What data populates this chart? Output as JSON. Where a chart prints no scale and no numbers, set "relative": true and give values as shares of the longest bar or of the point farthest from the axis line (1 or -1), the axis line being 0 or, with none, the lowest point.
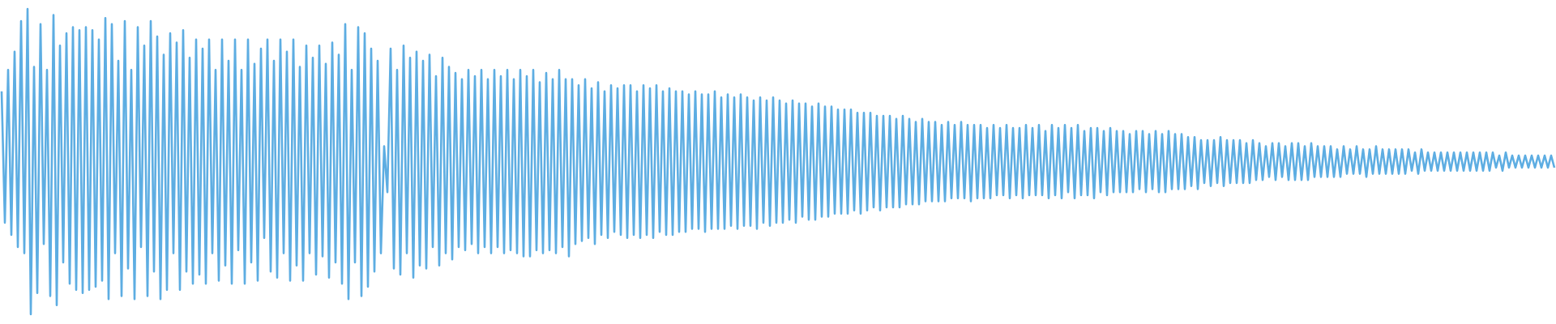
{
  "chart_data": {
    "type": "line",
    "relative": true,
    "color": "#5dade2",
    "categories": [
      null,
      null,
      null,
      null,
      null,
      null,
      null,
      null,
      null,
      null,
      null,
      null,
      null,
      null,
      null,
      null,
      null,
      null,
      null,
      null,
      null,
      null,
      null,
      null,
      null,
      null,
      null,
      null,
      null,
      null,
      null,
      null,
      null,
      null,
      null,
      null,
      null,
      null,
      null,
      null,
      null,
      null,
      null,
      null,
      null,
      null,
      null,
      null,
      null,
      null,
      null,
      null,
      null,
      null,
      null,
      null,
      null,
      null,
      null,
      null,
      null,
      null,
      null,
      null,
      null,
      null,
      null,
      null,
      null,
      null,
      null,
      null,
      null,
      null,
      null,
      null,
      null,
      null,
      null,
      null,
      null,
      null,
      null,
      null,
      null,
      null,
      null,
      null,
      null,
      null,
      null,
      null,
      null,
      null,
      null,
      null,
      null,
      null,
      null,
      null,
      null,
      null,
      null,
      null,
      null,
      null,
      null,
      null,
      null,
      null,
      null,
      null,
      null,
      null,
      null,
      null,
      null,
      null,
      null,
      null,
      null,
      null,
      null,
      null,
      null,
      null,
      null,
      null,
      null,
      null,
      null,
      null,
      null,
      null,
      null,
      null,
      null,
      null,
      null,
      null,
      null,
      null,
      null,
      null,
      null,
      null,
      null,
      null,
      null,
      null,
      null,
      null,
      null,
      null,
      null,
      null,
      null,
      null,
      null,
      null,
      null,
      null,
      null,
      null,
      null,
      null,
      null,
      null,
      null,
      null,
      null,
      null,
      null,
      null,
      null,
      null,
      null,
      null,
      null,
      null,
      null,
      null,
      null,
      null,
      null,
      null,
      null,
      null,
      null,
      null,
      null,
      null,
      null,
      null,
      null,
      null,
      null,
      null,
      null,
      null,
      null,
      null,
      null,
      null,
      null,
      null,
      null,
      null,
      null,
      null,
      null,
      null,
      null,
      null,
      null,
      null,
      null,
      null,
      null,
      null,
      null,
      null,
      null,
      null,
      null,
      null,
      null,
      null,
      null,
      null,
      null,
      null,
      null,
      null,
      null,
      null,
      null,
      null,
      null,
      null,
      null,
      null,
      null,
      null,
      null,
      null,
      null,
      null,
      null,
      null,
      null,
      null,
      null,
      null,
      null,
      null,
      null,
      null,
      null,
      null,
      null,
      null,
      null,
      null,
      null,
      null,
      null,
      null,
      null,
      null,
      null,
      null,
      null,
      null,
      null,
      null,
      null,
      null,
      null,
      null,
      null,
      null,
      null,
      null,
      null,
      null,
      null,
      null,
      null,
      null,
      null,
      null,
      null,
      null,
      null,
      null,
      null,
      null,
      null,
      null,
      null,
      null,
      null,
      null,
      null,
      null,
      null,
      null,
      null,
      null,
      null,
      null,
      null,
      null,
      null,
      null,
      null,
      null,
      null,
      null,
      null,
      null,
      null,
      null,
      null,
      null,
      null,
      null,
      null,
      null,
      null,
      null,
      null,
      null,
      null,
      null,
      null,
      null,
      null,
      null,
      null,
      null,
      null,
      null,
      null,
      null,
      null,
      null,
      null,
      null,
      null,
      null,
      null,
      null,
      null,
      null,
      null,
      null,
      null,
      null,
      null,
      null,
      null,
      null,
      null,
      null,
      null,
      null,
      null,
      null,
      null,
      null,
      null,
      null,
      null,
      null,
      null,
      null,
      null,
      null,
      null,
      null,
      null,
      null,
      null,
      null,
      null,
      null,
      null,
      null,
      null,
      null,
      null,
      null,
      null,
      null,
      null,
      null,
      null,
      null,
      null,
      null,
      null,
      null,
      null,
      null,
      null,
      null,
      null,
      null,
      null,
      null,
      null,
      null,
      null,
      null,
      null,
      null,
      null,
      null,
      null,
      null,
      null,
      null,
      null,
      null,
      null,
      null,
      null,
      null,
      null,
      null,
      null,
      null,
      null,
      null,
      null,
      null,
      null,
      null,
      null,
      null,
      null,
      null,
      null,
      null,
      null,
      null,
      null,
      null,
      null,
      null,
      null,
      null,
      null,
      null,
      null,
      null,
      null,
      null,
      null,
      null,
      null,
      null,
      null,
      null,
      null,
      null,
      null,
      null,
      null,
      null,
      null,
      null,
      null,
      null,
      null,
      null,
      null,
      null
    ],
    "values": [
      0.73,
      0.3,
      0.8,
      0.26,
      0.86,
      0.22,
      0.96,
      0.2,
      1.0,
      0.0,
      0.81,
      0.07,
      0.95,
      0.23,
      0.8,
      0.06,
      0.98,
      0.03,
      0.88,
      0.17,
      0.92,
      0.1,
      0.94,
      0.08,
      0.93,
      0.07,
      0.94,
      0.08,
      0.93,
      0.09,
      0.9,
      0.11,
      0.97,
      0.05,
      0.95,
      0.2,
      0.83,
      0.06,
      0.96,
      0.15,
      0.8,
      0.05,
      0.94,
      0.22,
      0.88,
      0.06,
      0.96,
      0.14,
      0.91,
      0.05,
      0.85,
      0.08,
      0.92,
      0.2,
      0.89,
      0.08,
      0.93,
      0.14,
      0.84,
      0.1,
      0.9,
      0.13,
      0.87,
      0.1,
      0.9,
      0.2,
      0.8,
      0.11,
      0.9,
      0.16,
      0.83,
      0.1,
      0.9,
      0.21,
      0.8,
      0.1,
      0.9,
      0.17,
      0.82,
      0.11,
      0.87,
      0.25,
      0.9,
      0.14,
      0.83,
      0.12,
      0.9,
      0.2,
      0.86,
      0.11,
      0.9,
      0.16,
      0.81,
      0.11,
      0.88,
      0.2,
      0.84,
      0.13,
      0.88,
      0.19,
      0.82,
      0.12,
      0.89,
      0.17,
      0.85,
      0.1,
      0.95,
      0.05,
      0.8,
      0.17,
      0.94,
      0.06,
      0.92,
      0.09,
      0.87,
      0.14,
      0.83,
      0.2,
      0.55,
      0.4,
      0.87,
      0.15,
      0.8,
      0.13,
      0.88,
      0.2,
      0.84,
      0.12,
      0.86,
      0.16,
      0.83,
      0.15,
      0.85,
      0.22,
      0.78,
      0.16,
      0.84,
      0.2,
      0.81,
      0.18,
      0.79,
      0.22,
      0.77,
      0.21,
      0.8,
      0.23,
      0.78,
      0.2,
      0.8,
      0.22,
      0.77,
      0.2,
      0.8,
      0.22,
      0.78,
      0.2,
      0.8,
      0.21,
      0.77,
      0.2,
      0.8,
      0.19,
      0.78,
      0.19,
      0.8,
      0.21,
      0.76,
      0.2,
      0.79,
      0.21,
      0.77,
      0.2,
      0.8,
      0.22,
      0.77,
      0.19,
      0.77,
      0.23,
      0.75,
      0.24,
      0.77,
      0.25,
      0.74,
      0.23,
      0.76,
      0.26,
      0.73,
      0.25,
      0.75,
      0.27,
      0.74,
      0.26,
      0.75,
      0.25,
      0.75,
      0.26,
      0.73,
      0.25,
      0.75,
      0.26,
      0.74,
      0.25,
      0.75,
      0.27,
      0.73,
      0.26,
      0.74,
      0.26,
      0.73,
      0.27,
      0.73,
      0.27,
      0.72,
      0.28,
      0.73,
      0.28,
      0.72,
      0.27,
      0.72,
      0.28,
      0.73,
      0.28,
      0.71,
      0.28,
      0.72,
      0.29,
      0.71,
      0.28,
      0.72,
      0.29,
      0.71,
      0.29,
      0.7,
      0.28,
      0.71,
      0.3,
      0.7,
      0.29,
      0.71,
      0.3,
      0.7,
      0.3,
      0.69,
      0.31,
      0.7,
      0.3,
      0.69,
      0.32,
      0.69,
      0.31,
      0.68,
      0.31,
      0.69,
      0.32,
      0.68,
      0.32,
      0.68,
      0.33,
      0.67,
      0.33,
      0.67,
      0.33,
      0.67,
      0.34,
      0.66,
      0.33,
      0.66,
      0.34,
      0.66,
      0.35,
      0.65,
      0.34,
      0.65,
      0.35,
      0.65,
      0.35,
      0.64,
      0.35,
      0.65,
      0.36,
      0.64,
      0.36,
      0.63,
      0.36,
      0.64,
      0.37,
      0.63,
      0.37,
      0.63,
      0.37,
      0.62,
      0.37,
      0.63,
      0.38,
      0.62,
      0.38,
      0.63,
      0.38,
      0.62,
      0.37,
      0.62,
      0.38,
      0.62,
      0.38,
      0.61,
      0.38,
      0.62,
      0.39,
      0.61,
      0.39,
      0.62,
      0.38,
      0.61,
      0.39,
      0.61,
      0.38,
      0.62,
      0.39,
      0.61,
      0.39,
      0.62,
      0.39,
      0.6,
      0.38,
      0.62,
      0.39,
      0.61,
      0.38,
      0.62,
      0.4,
      0.61,
      0.38,
      0.62,
      0.39,
      0.6,
      0.39,
      0.61,
      0.38,
      0.61,
      0.4,
      0.6,
      0.39,
      0.61,
      0.4,
      0.6,
      0.4,
      0.6,
      0.4,
      0.59,
      0.4,
      0.6,
      0.41,
      0.6,
      0.4,
      0.59,
      0.41,
      0.6,
      0.4,
      0.59,
      0.4,
      0.6,
      0.41,
      0.59,
      0.41,
      0.59,
      0.41,
      0.58,
      0.42,
      0.58,
      0.41,
      0.57,
      0.43,
      0.57,
      0.42,
      0.57,
      0.43,
      0.58,
      0.42,
      0.57,
      0.43,
      0.57,
      0.43,
      0.57,
      0.43,
      0.56,
      0.43,
      0.57,
      0.44,
      0.56,
      0.44,
      0.55,
      0.45,
      0.56,
      0.44,
      0.56,
      0.45,
      0.55,
      0.44,
      0.56,
      0.44,
      0.56,
      0.44,
      0.55,
      0.44,
      0.56,
      0.45,
      0.55,
      0.45,
      0.55,
      0.45,
      0.55,
      0.45,
      0.54,
      0.45,
      0.55,
      0.46,
      0.54,
      0.46,
      0.55,
      0.46,
      0.54,
      0.45,
      0.54,
      0.46,
      0.55,
      0.46,
      0.54,
      0.46,
      0.54,
      0.46,
      0.54,
      0.46,
      0.54,
      0.46,
      0.54,
      0.47,
      0.53,
      0.46,
      0.54,
      0.47,
      0.53,
      0.47,
      0.53,
      0.47,
      0.53,
      0.47,
      0.53,
      0.47,
      0.53,
      0.47,
      0.53,
      0.47,
      0.53,
      0.47,
      0.53,
      0.47,
      0.53,
      0.47,
      0.53,
      0.47,
      0.53,
      0.48,
      0.52,
      0.47,
      0.53,
      0.48,
      0.52,
      0.48,
      0.52,
      0.48,
      0.52,
      0.48,
      0.52,
      0.48,
      0.52,
      0.48,
      0.52,
      0.48,
      0.52,
      0.48
    ]
  }
}
